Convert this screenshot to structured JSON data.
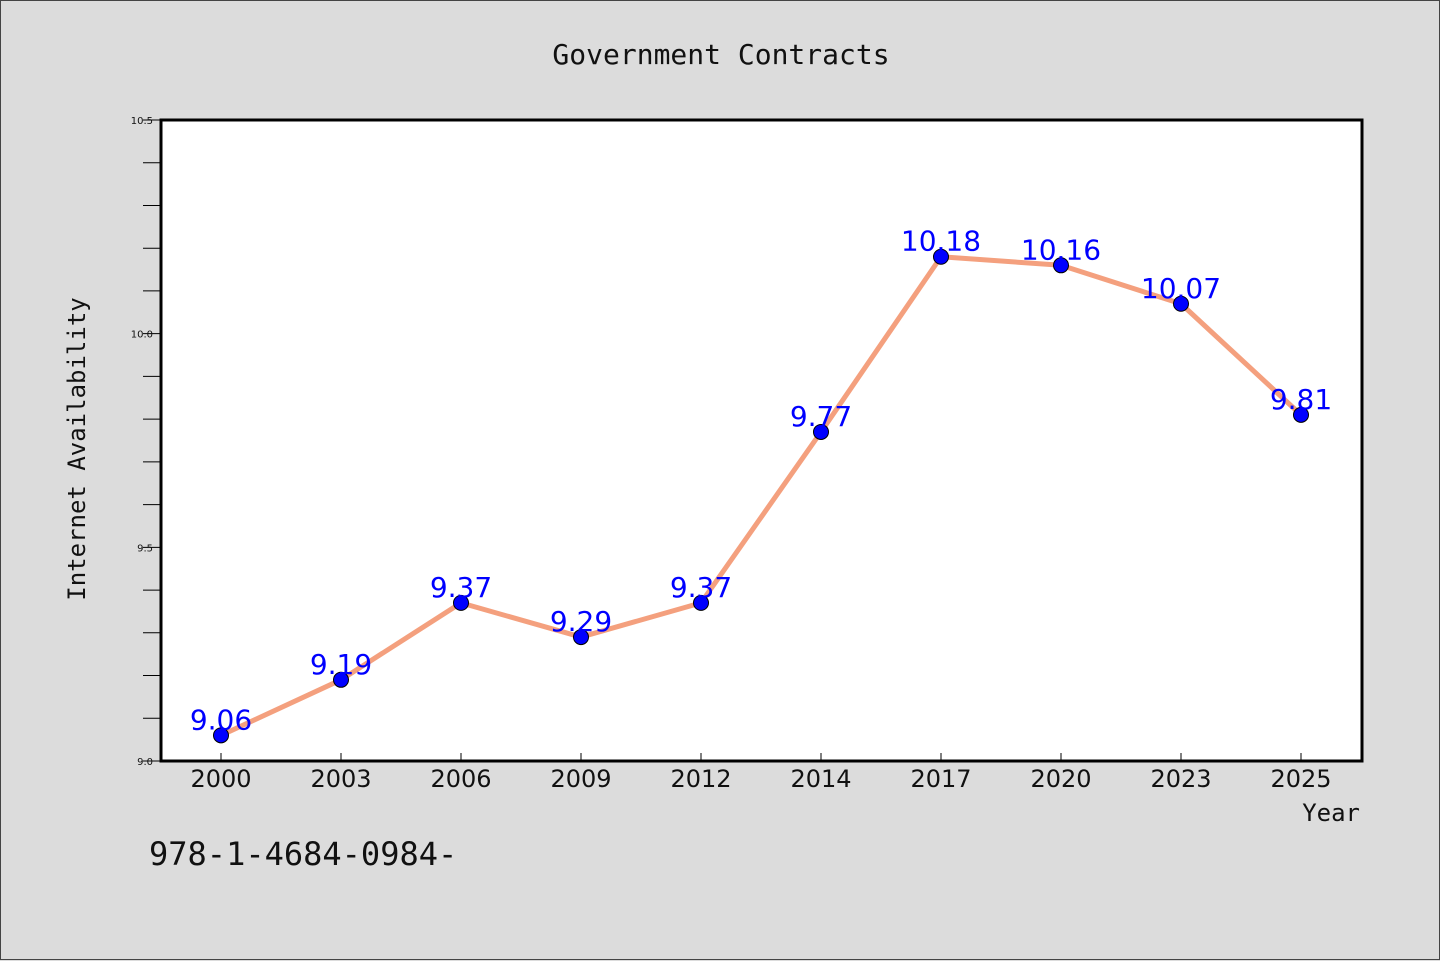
{
  "chart_data": {
    "type": "line",
    "title": "Government Contracts",
    "xlabel": "Year",
    "ylabel": "Internet Availability",
    "categories": [
      "2000",
      "2003",
      "2006",
      "2009",
      "2012",
      "2014",
      "2017",
      "2020",
      "2023",
      "2025"
    ],
    "series": [
      {
        "values": [
          9.06,
          9.19,
          9.37,
          9.29,
          9.37,
          9.77,
          10.18,
          10.16,
          10.07,
          9.81
        ],
        "labels": [
          "9.06",
          "9.19",
          "9.37",
          "9.29",
          "9.37",
          "9.77",
          "10.18",
          "10.16",
          "10.07",
          "9.81"
        ],
        "line_color": "#f4a07e",
        "marker_color": "#0000ff"
      }
    ],
    "ylim": [
      9.0,
      10.5
    ],
    "yticks": [
      "9.0",
      "9.5",
      "10.0",
      "10.5"
    ],
    "grid": false,
    "legend": "none"
  },
  "footer": {
    "text": "978-1-4684-0984-"
  },
  "colors": {
    "background": "#dcdcdc",
    "plot_area": "#ffffff",
    "line": "#f4a07e",
    "marker": "#0000ff",
    "data_label": "#0000ff"
  }
}
